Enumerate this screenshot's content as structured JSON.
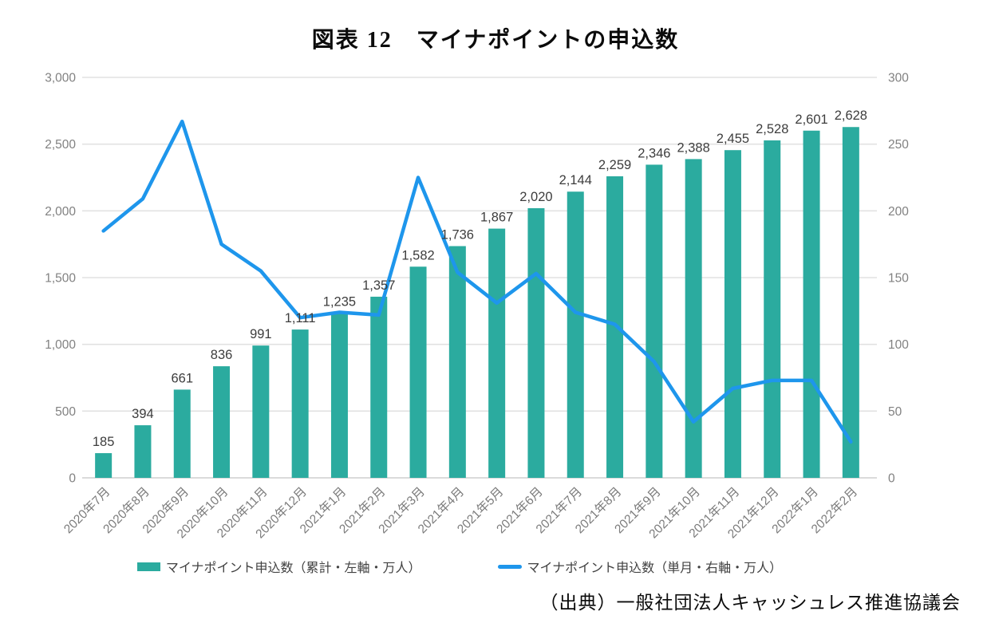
{
  "title": "図表 12　マイナポイントの申込数",
  "source": "（出典）一般社団法人キャッシュレス推進協議会",
  "chart_data": {
    "type": "bar",
    "subtype": "combo-bar-line-dual-axis",
    "categories": [
      "2020年7月",
      "2020年8月",
      "2020年9月",
      "2020年10月",
      "2020年11月",
      "2020年12月",
      "2021年1月",
      "2021年2月",
      "2021年3月",
      "2021年4月",
      "2021年5月",
      "2021年6月",
      "2021年7月",
      "2021年8月",
      "2021年9月",
      "2021年10月",
      "2021年11月",
      "2021年12月",
      "2022年1月",
      "2022年2月"
    ],
    "series": [
      {
        "name": "マイナポイント申込数（累計・左軸・万人）",
        "type": "bar",
        "axis": "left",
        "color": "#2bab9f",
        "values": [
          185,
          394,
          661,
          836,
          991,
          1111,
          1235,
          1357,
          1582,
          1736,
          1867,
          2020,
          2144,
          2259,
          2346,
          2388,
          2455,
          2528,
          2601,
          2628
        ],
        "labels": [
          "185",
          "394",
          "661",
          "836",
          "991",
          "1,111",
          "1,235",
          "1,357",
          "1,582",
          "1,736",
          "1,867",
          "2,020",
          "2,144",
          "2,259",
          "2,346",
          "2,388",
          "2,455",
          "2,528",
          "2,601",
          "2,628"
        ]
      },
      {
        "name": "マイナポイント申込数（単月・右軸・万人）",
        "type": "line",
        "axis": "right",
        "color": "#1e96ec",
        "values": [
          185,
          209,
          267,
          175,
          155,
          120,
          124,
          122,
          225,
          154,
          131,
          153,
          124,
          115,
          87,
          42,
          67,
          73,
          73,
          27
        ]
      }
    ],
    "left_axis": {
      "min": 0,
      "max": 3000,
      "tick_labels": [
        "0",
        "500",
        "1,000",
        "1,500",
        "2,000",
        "2,500",
        "3,000"
      ]
    },
    "right_axis": {
      "min": 0,
      "max": 300,
      "tick_labels": [
        "0",
        "50",
        "100",
        "150",
        "200",
        "250",
        "300"
      ]
    },
    "grid": true,
    "legend_position": "bottom"
  }
}
